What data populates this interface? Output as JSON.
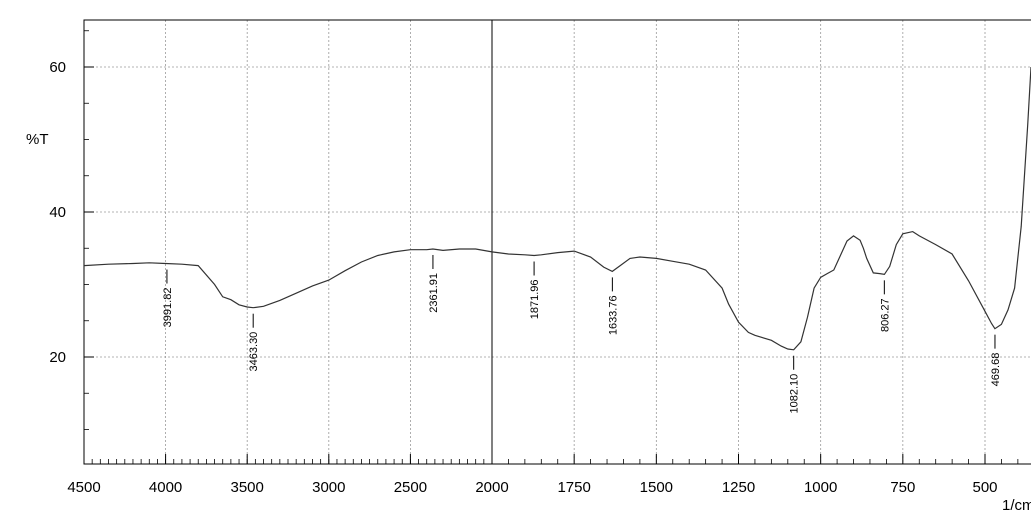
{
  "chart_data": {
    "type": "line",
    "title": "",
    "ylabel": "%T",
    "xunit": "1/cm",
    "xlim": [
      4500,
      350
    ],
    "ylim": [
      5,
      68
    ],
    "grid": true,
    "x_ticks": [
      4500,
      4000,
      3500,
      3000,
      2500,
      2000,
      1750,
      1500,
      1250,
      1000,
      750,
      500
    ],
    "y_ticks": [
      20,
      40,
      60
    ],
    "series": [
      {
        "x": [
          4500,
          4350,
          4200,
          4100,
          4000,
          3900,
          3800,
          3700,
          3650,
          3600,
          3550,
          3500,
          3463,
          3400,
          3300,
          3200,
          3100,
          3000,
          2900,
          2800,
          2700,
          2600,
          2500,
          2400,
          2362,
          2300,
          2200,
          2100,
          2000,
          1950,
          1900,
          1872,
          1850,
          1800,
          1750,
          1700,
          1660,
          1634,
          1610,
          1580,
          1550,
          1500,
          1450,
          1400,
          1350,
          1300,
          1280,
          1250,
          1220,
          1200,
          1150,
          1120,
          1100,
          1082,
          1060,
          1040,
          1020,
          1000,
          980,
          960,
          940,
          920,
          900,
          880,
          870,
          860,
          840,
          820,
          806,
          790,
          770,
          750,
          720,
          700,
          650,
          600,
          550,
          500,
          480,
          470,
          450,
          430,
          410,
          390,
          370,
          360
        ],
        "y": [
          32.6,
          32.8,
          32.9,
          33.0,
          32.9,
          32.8,
          32.6,
          30.0,
          28.3,
          27.9,
          27.2,
          26.9,
          26.8,
          27.0,
          27.8,
          28.8,
          29.8,
          30.6,
          31.9,
          33.1,
          34.0,
          34.5,
          34.8,
          34.8,
          34.9,
          34.7,
          34.9,
          34.9,
          34.5,
          34.2,
          34.1,
          34.0,
          34.1,
          34.4,
          34.6,
          33.8,
          32.4,
          31.8,
          32.6,
          33.6,
          33.8,
          33.6,
          33.2,
          32.8,
          32.0,
          29.5,
          27.3,
          24.8,
          23.4,
          23.0,
          22.3,
          21.5,
          21.1,
          21.0,
          22.1,
          25.5,
          29.5,
          31.0,
          31.5,
          32.0,
          34.0,
          36.0,
          36.7,
          36.1,
          35.0,
          33.6,
          31.6,
          31.5,
          31.4,
          32.5,
          35.5,
          37.0,
          37.3,
          36.7,
          35.5,
          34.2,
          30.5,
          26.3,
          24.6,
          23.9,
          24.5,
          26.5,
          29.5,
          38.0,
          52.0,
          60.0
        ]
      }
    ],
    "peaks": [
      {
        "x": 3991.82,
        "label": "3991.82"
      },
      {
        "x": 3463.3,
        "label": "3463.30"
      },
      {
        "x": 2361.91,
        "label": "2361.91"
      },
      {
        "x": 1871.96,
        "label": "1871.96"
      },
      {
        "x": 1633.76,
        "label": "1633.76"
      },
      {
        "x": 1082.1,
        "label": "1082.10"
      },
      {
        "x": 806.27,
        "label": "806.27"
      },
      {
        "x": 469.68,
        "label": "469.68"
      }
    ]
  }
}
